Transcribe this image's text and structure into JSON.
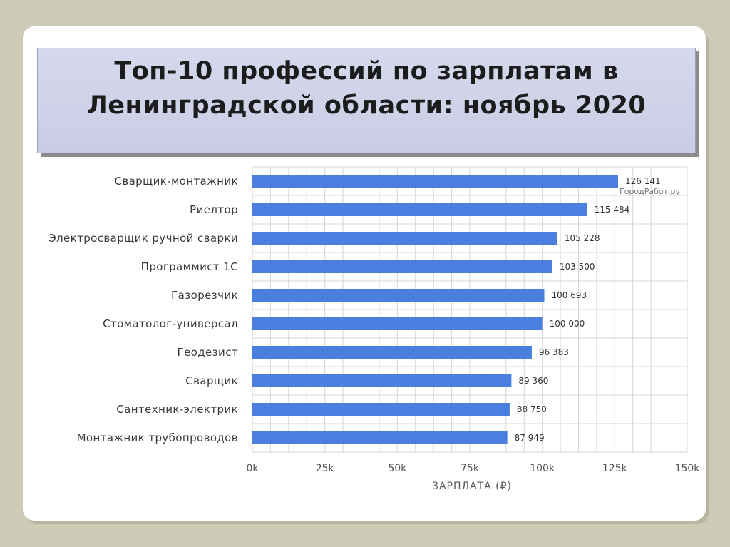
{
  "slide": {
    "title_line1": "Топ-10 профессий по зарплатам в",
    "title_line2": "Ленинградской области: ноябрь 2020"
  },
  "chart_data": {
    "type": "bar",
    "orientation": "horizontal",
    "title": "",
    "xlabel": "ЗАРПЛАТА (₽)",
    "ylabel": "",
    "watermark": "ГородРабот.ру",
    "xlim": [
      0,
      150000
    ],
    "grid": true,
    "bar_color": "#4a7fe0",
    "categories": [
      "Сварщик-монтажник",
      "Риелтор",
      "Электросварщик ручной сварки",
      "Программист 1С",
      "Газорезчик",
      "Стоматолог-универсал",
      "Геодезист",
      "Сварщик",
      "Сантехник-электрик",
      "Монтажник трубопроводов"
    ],
    "values": [
      126141,
      115484,
      105228,
      103500,
      100693,
      100000,
      96383,
      89360,
      88750,
      87949
    ],
    "value_labels": [
      "126 141",
      "115 484",
      "105 228",
      "103 500",
      "100 693",
      "100 000",
      "96 383",
      "89 360",
      "88 750",
      "87 949"
    ],
    "ticks": [
      0,
      25000,
      50000,
      75000,
      100000,
      125000,
      150000
    ],
    "tick_labels": [
      "0k",
      "25k",
      "50k",
      "75k",
      "100k",
      "125k",
      "150k"
    ]
  }
}
